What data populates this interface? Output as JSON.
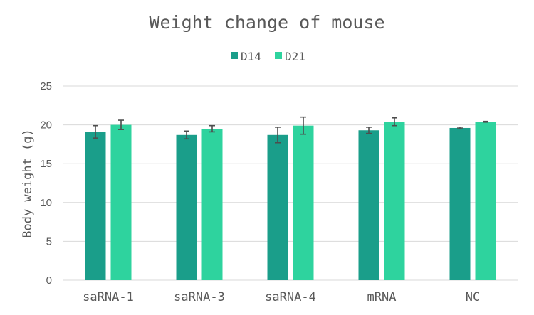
{
  "chart_data": {
    "type": "bar",
    "title": "Weight change of mouse",
    "xlabel": "",
    "ylabel": "Body weight (g)",
    "ylim": [
      0,
      25
    ],
    "yticks": [
      0,
      5,
      10,
      15,
      20,
      25
    ],
    "grid": true,
    "legend_position": "top",
    "categories": [
      "saRNA-1",
      "saRNA-3",
      "saRNA-4",
      "mRNA",
      "NC"
    ],
    "series": [
      {
        "name": "D14",
        "color": "#1a9e8a",
        "values": [
          19.1,
          18.7,
          18.7,
          19.3,
          19.6
        ],
        "errors": [
          0.8,
          0.5,
          1.0,
          0.4,
          0.1
        ]
      },
      {
        "name": "D21",
        "color": "#2ed39e",
        "values": [
          20.0,
          19.5,
          19.9,
          20.4,
          20.4
        ],
        "errors": [
          0.6,
          0.4,
          1.1,
          0.5,
          0.05
        ]
      }
    ]
  }
}
